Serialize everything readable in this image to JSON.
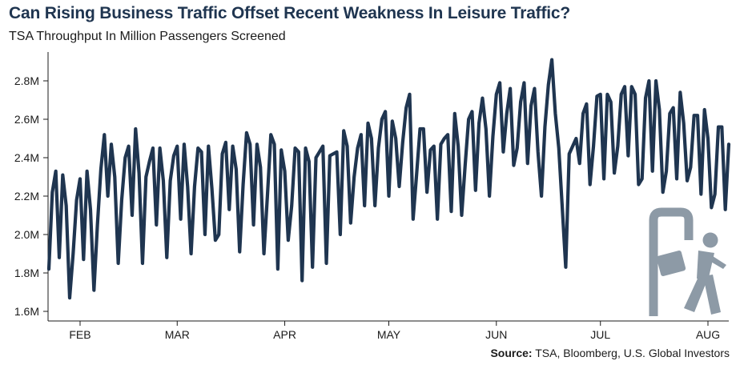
{
  "title": "Can Rising Business Traffic Offset Recent Weakness In Leisure Traffic?",
  "subtitle": "TSA Throughput In Million Passengers Screened",
  "source_label": "Source:",
  "source_text": "TSA, Bloomberg, U.S. Global Investors",
  "icon": "traveler-with-briefcase-icon",
  "colors": {
    "line": "#1f3550",
    "title": "#1f3550",
    "icon": "#8d9aa6"
  },
  "chart_data": {
    "type": "line",
    "title": "Can Rising Business Traffic Offset Recent Weakness In Leisure Traffic?",
    "subtitle": "TSA Throughput In Million Passengers Screened",
    "xlabel": "",
    "ylabel": "",
    "ylim": [
      1.55,
      2.95
    ],
    "yticks": [
      1.6,
      1.8,
      2.0,
      2.2,
      2.4,
      2.6,
      2.8
    ],
    "ytick_labels": [
      "1.6M",
      "1.8M",
      "2.0M",
      "2.2M",
      "2.4M",
      "2.6M",
      "2.8M"
    ],
    "x_tick_labels": [
      "FEB",
      "MAR",
      "APR",
      "MAY",
      "JUN",
      "JUL",
      "AUG"
    ],
    "x_tick_index": [
      9,
      37,
      68,
      98,
      129,
      159,
      190
    ],
    "grid": false,
    "legend": "none",
    "series": [
      {
        "values": [
          1.82,
          2.22,
          2.33,
          1.88,
          2.31,
          2.15,
          1.67,
          1.9,
          2.18,
          2.29,
          1.87,
          2.33,
          2.13,
          1.71,
          2.05,
          2.34,
          2.52,
          2.2,
          2.47,
          2.3,
          1.85,
          2.18,
          2.4,
          2.46,
          2.1,
          2.55,
          2.32,
          1.85,
          2.3,
          2.38,
          2.45,
          2.05,
          2.45,
          2.28,
          1.88,
          2.28,
          2.41,
          2.46,
          2.08,
          2.47,
          2.25,
          1.9,
          2.25,
          2.45,
          2.43,
          2.0,
          2.46,
          2.24,
          1.97,
          2.0,
          2.42,
          2.48,
          2.13,
          2.46,
          2.34,
          1.91,
          2.26,
          2.53,
          2.47,
          2.05,
          2.47,
          2.35,
          1.9,
          2.2,
          2.52,
          2.47,
          1.82,
          2.44,
          2.33,
          1.97,
          2.15,
          2.45,
          2.43,
          1.76,
          2.45,
          2.38,
          1.83,
          2.4,
          2.43,
          2.46,
          1.85,
          2.41,
          2.42,
          2.43,
          2.0,
          2.54,
          2.46,
          2.06,
          2.3,
          2.45,
          2.52,
          2.15,
          2.58,
          2.5,
          2.15,
          2.45,
          2.6,
          2.64,
          2.2,
          2.59,
          2.5,
          2.25,
          2.48,
          2.66,
          2.73,
          2.08,
          2.31,
          2.55,
          2.55,
          2.22,
          2.44,
          2.46,
          2.08,
          2.47,
          2.5,
          2.52,
          2.12,
          2.63,
          2.46,
          2.1,
          2.36,
          2.6,
          2.64,
          2.23,
          2.58,
          2.71,
          2.55,
          2.2,
          2.51,
          2.73,
          2.79,
          2.43,
          2.63,
          2.76,
          2.36,
          2.45,
          2.69,
          2.79,
          2.37,
          2.67,
          2.76,
          2.43,
          2.2,
          2.56,
          2.78,
          2.91,
          2.63,
          2.45,
          2.14,
          1.83,
          2.42,
          2.46,
          2.5,
          2.37,
          2.63,
          2.68,
          2.26,
          2.46,
          2.72,
          2.73,
          2.29,
          2.73,
          2.69,
          2.32,
          2.46,
          2.73,
          2.77,
          2.41,
          2.77,
          2.73,
          2.26,
          2.29,
          2.71,
          2.8,
          2.33,
          2.8,
          2.65,
          2.22,
          2.33,
          2.63,
          2.66,
          2.29,
          2.74,
          2.58,
          2.28,
          2.35,
          2.62,
          2.62,
          2.21,
          2.65,
          2.5,
          2.14,
          2.21,
          2.56,
          2.56,
          2.13,
          2.47
        ]
      }
    ]
  }
}
